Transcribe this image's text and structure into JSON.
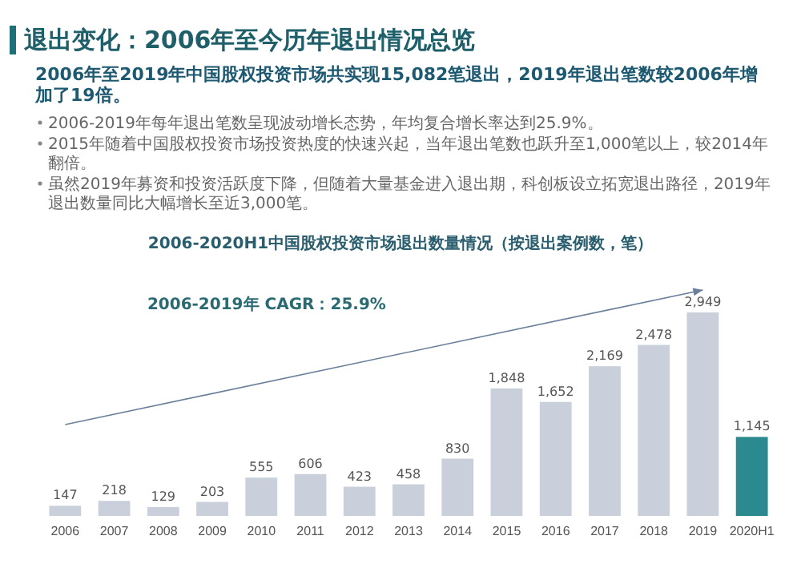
{
  "chart_data": {
    "type": "bar",
    "title": "退出变化：2006年至今历年退出情况总览",
    "subtitle": "2006年至2019年中国股权投资市场共实现15,082笔退出，2019年退出笔数较2006年增加了19倍。",
    "annotations": [
      "2006-2019年每年退出笔数呈现波动增长态势，年均复合增长率达到25.9%。",
      "2015年随着中国股权投资市场投资热度的快速兴起，当年退出笔数也跃升至1,000笔以上，较2014年翻倍。",
      "虽然2019年募资和投资活跃度下降，但随着大量基金进入退出期，科创板设立拓宽退出路径，2019年退出数量同比大幅增长至近3,000笔。",
      "2006-2020H1中国股权投资市场退出数量情况（按退出案例数，笔）",
      "2006-2019年 CAGR：25.9%"
    ],
    "categories": [
      "2006",
      "2007",
      "2008",
      "2009",
      "2010",
      "2011",
      "2012",
      "2013",
      "2014",
      "2015",
      "2016",
      "2017",
      "2018",
      "2019",
      "2020H1"
    ],
    "values": [
      147,
      218,
      129,
      203,
      555,
      606,
      423,
      458,
      830,
      1848,
      1652,
      2169,
      2478,
      2949,
      1145
    ],
    "colors": [
      "#c9d0dc",
      "#c9d0dc",
      "#c9d0dc",
      "#c9d0dc",
      "#c9d0dc",
      "#c9d0dc",
      "#c9d0dc",
      "#c9d0dc",
      "#c9d0dc",
      "#c9d0dc",
      "#c9d0dc",
      "#c9d0dc",
      "#c9d0dc",
      "#c9d0dc",
      "#2b8a8f"
    ],
    "value_labels": [
      "147",
      "218",
      "129",
      "203",
      "555",
      "606",
      "423",
      "458",
      "830",
      "1,848",
      "1,652",
      "2,169",
      "2,478",
      "2,949",
      "1,145"
    ]
  }
}
